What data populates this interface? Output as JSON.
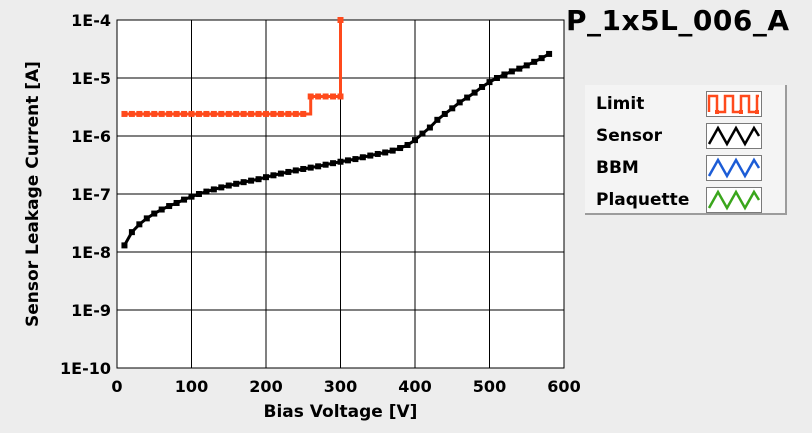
{
  "chart_data": {
    "type": "line",
    "title": "P_1x5L_006_A",
    "xlabel": "Bias Voltage [V]",
    "ylabel": "Sensor Leakage Current [A]",
    "xlim": [
      0,
      600
    ],
    "ylim": [
      1e-10,
      0.0001
    ],
    "yscale": "log",
    "xticks": [
      0,
      100,
      200,
      300,
      400,
      500,
      600
    ],
    "xtick_labels": [
      "0",
      "100",
      "200",
      "300",
      "400",
      "500",
      "600"
    ],
    "yticks": [
      1e-10,
      1e-09,
      1e-08,
      1e-07,
      1e-06,
      1e-05,
      0.0001
    ],
    "ytick_labels": [
      "1E-10",
      "1E-9",
      "1E-8",
      "1E-7",
      "1E-6",
      "1E-5",
      "1E-4"
    ],
    "grid": true,
    "legend_position": "right",
    "series": [
      {
        "name": "Limit",
        "color": "#ff4a1c",
        "marker": "square",
        "x": [
          10,
          20,
          30,
          40,
          50,
          60,
          70,
          80,
          90,
          100,
          110,
          120,
          130,
          140,
          150,
          160,
          170,
          180,
          190,
          200,
          210,
          220,
          230,
          240,
          250,
          260,
          270,
          280,
          290,
          300,
          300
        ],
        "y": [
          2.4e-06,
          2.4e-06,
          2.4e-06,
          2.4e-06,
          2.4e-06,
          2.4e-06,
          2.4e-06,
          2.4e-06,
          2.4e-06,
          2.4e-06,
          2.4e-06,
          2.4e-06,
          2.4e-06,
          2.4e-06,
          2.4e-06,
          2.4e-06,
          2.4e-06,
          2.4e-06,
          2.4e-06,
          2.4e-06,
          2.4e-06,
          2.4e-06,
          2.4e-06,
          2.4e-06,
          2.4e-06,
          4.8e-06,
          4.8e-06,
          4.8e-06,
          4.8e-06,
          4.8e-06,
          0.0001
        ]
      },
      {
        "name": "Sensor",
        "color": "#000000",
        "marker": "square",
        "x": [
          10,
          20,
          30,
          40,
          50,
          60,
          70,
          80,
          90,
          100,
          110,
          120,
          130,
          140,
          150,
          160,
          170,
          180,
          190,
          200,
          210,
          220,
          230,
          240,
          250,
          260,
          270,
          280,
          290,
          300,
          310,
          320,
          330,
          340,
          350,
          360,
          370,
          380,
          390,
          400,
          410,
          420,
          430,
          440,
          450,
          460,
          470,
          480,
          490,
          500,
          510,
          520,
          530,
          540,
          550,
          560,
          570,
          580
        ],
        "y": [
          1.3e-08,
          2.2e-08,
          3e-08,
          3.8e-08,
          4.6e-08,
          5.4e-08,
          6.2e-08,
          7e-08,
          8e-08,
          9e-08,
          1e-07,
          1.1e-07,
          1.2e-07,
          1.3e-07,
          1.4e-07,
          1.5e-07,
          1.6e-07,
          1.7e-07,
          1.8e-07,
          1.95e-07,
          2.1e-07,
          2.25e-07,
          2.4e-07,
          2.55e-07,
          2.7e-07,
          2.85e-07,
          3e-07,
          3.2e-07,
          3.4e-07,
          3.6e-07,
          3.8e-07,
          4e-07,
          4.3e-07,
          4.6e-07,
          4.9e-07,
          5.2e-07,
          5.6e-07,
          6.2e-07,
          7e-07,
          8.5e-07,
          1.1e-06,
          1.4e-06,
          1.9e-06,
          2.4e-06,
          3e-06,
          3.8e-06,
          4.6e-06,
          5.6e-06,
          7e-06,
          8.5e-06,
          1e-05,
          1.15e-05,
          1.3e-05,
          1.45e-05,
          1.65e-05,
          1.9e-05,
          2.2e-05,
          2.6e-05
        ]
      },
      {
        "name": "BBM",
        "color": "#1c5cd6",
        "x": [],
        "y": []
      },
      {
        "name": "Plaquette",
        "color": "#3aa61c",
        "x": [],
        "y": []
      }
    ]
  }
}
